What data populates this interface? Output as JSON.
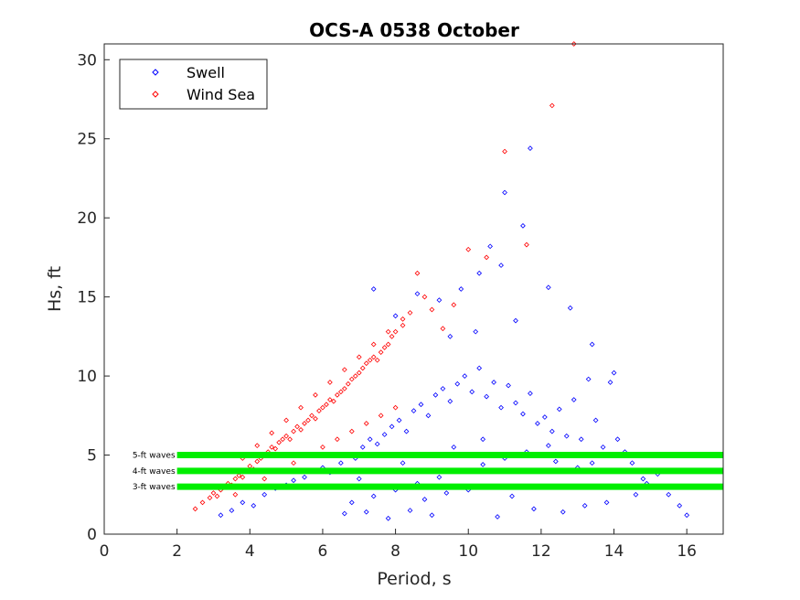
{
  "chart_data": {
    "type": "scatter",
    "title": "OCS-A 0538 October",
    "xlabel": "Period, s",
    "ylabel": "Hs, ft",
    "xlim": [
      0,
      17
    ],
    "ylim": [
      0,
      31
    ],
    "xticks": [
      "0",
      "2",
      "4",
      "6",
      "8",
      "10",
      "12",
      "14",
      "16"
    ],
    "yticks": [
      "0",
      "5",
      "10",
      "15",
      "20",
      "25",
      "30"
    ],
    "grid": false,
    "legend_position": "top-left",
    "marker": "diamond",
    "series": [
      {
        "name": "Swell",
        "color": "#0000ff",
        "x": [
          3.2,
          3.5,
          3.8,
          4.1,
          4.4,
          4.7,
          5.0,
          5.2,
          5.5,
          5.8,
          6.0,
          6.2,
          6.5,
          6.7,
          6.9,
          7.1,
          7.3,
          7.5,
          7.7,
          7.9,
          8.1,
          8.3,
          8.5,
          8.7,
          8.9,
          9.1,
          9.3,
          9.5,
          9.7,
          9.9,
          10.1,
          10.3,
          10.5,
          10.7,
          10.9,
          11.1,
          11.3,
          11.5,
          11.7,
          11.9,
          12.1,
          12.3,
          12.5,
          12.7,
          12.9,
          13.1,
          13.3,
          13.5,
          13.7,
          13.9,
          14.1,
          14.3,
          14.5,
          14.7,
          14.9,
          15.2,
          15.5,
          15.8,
          16.0,
          11.0,
          11.7,
          11.5,
          10.9,
          10.6,
          10.3,
          9.8,
          9.2,
          8.6,
          8.0,
          7.4,
          9.5,
          10.2,
          11.3,
          12.2,
          12.8,
          13.4,
          14.0,
          9.0,
          8.4,
          7.8,
          7.2,
          6.6,
          10.8,
          11.8,
          12.6,
          13.2,
          13.8,
          14.6,
          15.0,
          8.8,
          9.4,
          10.0,
          10.6,
          11.2,
          6.4,
          7.0,
          7.6,
          8.2,
          8.8,
          9.6,
          10.4,
          11.4,
          12.4,
          13.0,
          6.8,
          7.4,
          8.0,
          8.6,
          9.2,
          9.8,
          10.4,
          11.0,
          11.6,
          12.2,
          12.8,
          13.4,
          14.0,
          14.8
        ],
        "y": [
          1.2,
          1.5,
          2.0,
          1.8,
          2.5,
          2.9,
          3.1,
          3.4,
          3.6,
          4.0,
          4.2,
          3.9,
          4.5,
          5.0,
          4.8,
          5.5,
          6.0,
          5.7,
          6.3,
          6.8,
          7.2,
          6.5,
          7.8,
          8.2,
          7.5,
          8.8,
          9.2,
          8.4,
          9.5,
          10.0,
          9.0,
          10.5,
          8.7,
          9.6,
          8.0,
          9.4,
          8.3,
          7.6,
          8.9,
          7.0,
          7.4,
          6.5,
          7.9,
          6.2,
          8.5,
          6.0,
          9.8,
          7.2,
          5.5,
          9.6,
          6.0,
          5.2,
          4.5,
          4.0,
          3.2,
          3.8,
          2.5,
          1.8,
          1.2,
          21.6,
          24.4,
          19.5,
          17.0,
          18.2,
          16.5,
          15.5,
          14.8,
          15.2,
          13.8,
          15.5,
          12.5,
          12.8,
          13.5,
          15.6,
          14.3,
          12.0,
          10.2,
          1.2,
          1.5,
          1.0,
          1.4,
          1.3,
          1.1,
          1.6,
          1.4,
          1.8,
          2.0,
          2.5,
          3.0,
          2.2,
          2.6,
          2.8,
          3.0,
          2.4,
          3.0,
          3.5,
          4.0,
          4.5,
          5.0,
          5.5,
          6.0,
          5.0,
          4.6,
          4.2,
          2.0,
          2.4,
          2.8,
          3.2,
          3.6,
          4.0,
          4.4,
          4.8,
          5.2,
          5.6,
          5.0,
          4.5,
          4.0,
          3.5
        ]
      },
      {
        "name": "Wind Sea",
        "color": "#ff0000",
        "x": [
          2.5,
          2.7,
          2.9,
          3.0,
          3.1,
          3.2,
          3.3,
          3.4,
          3.5,
          3.6,
          3.7,
          3.8,
          3.9,
          4.0,
          4.1,
          4.2,
          4.3,
          4.4,
          4.5,
          4.6,
          4.7,
          4.8,
          4.9,
          5.0,
          5.1,
          5.2,
          5.3,
          5.4,
          5.5,
          5.6,
          5.7,
          5.8,
          5.9,
          6.0,
          6.1,
          6.2,
          6.3,
          6.4,
          6.5,
          6.6,
          6.7,
          6.8,
          6.9,
          7.0,
          7.1,
          7.2,
          7.3,
          7.4,
          7.5,
          7.6,
          7.7,
          7.8,
          7.9,
          8.0,
          8.2,
          8.4,
          8.6,
          8.8,
          9.0,
          9.3,
          9.6,
          10.0,
          10.5,
          11.0,
          11.6,
          12.3,
          12.9,
          3.6,
          4.0,
          4.4,
          4.8,
          5.2,
          5.6,
          6.0,
          6.4,
          6.8,
          7.2,
          7.6,
          8.0,
          3.8,
          4.2,
          4.6,
          5.0,
          5.4,
          5.8,
          6.2,
          6.6,
          7.0,
          7.4,
          7.8,
          8.2
        ],
        "y": [
          1.6,
          2.0,
          2.3,
          2.6,
          2.4,
          2.8,
          3.0,
          3.2,
          3.1,
          3.5,
          3.7,
          3.6,
          4.0,
          4.3,
          4.1,
          4.6,
          4.8,
          5.0,
          5.2,
          5.5,
          5.4,
          5.8,
          6.0,
          6.2,
          6.0,
          6.5,
          6.8,
          6.6,
          7.0,
          7.2,
          7.5,
          7.3,
          7.8,
          8.0,
          8.2,
          8.5,
          8.4,
          8.8,
          9.0,
          9.2,
          9.5,
          9.8,
          10.0,
          10.2,
          10.5,
          10.8,
          11.0,
          11.2,
          11.0,
          11.5,
          11.8,
          12.0,
          12.5,
          12.8,
          13.2,
          14.0,
          16.5,
          15.0,
          14.2,
          13.0,
          14.5,
          18.0,
          17.5,
          24.2,
          18.3,
          27.1,
          31.0,
          2.5,
          3.0,
          3.5,
          4.0,
          4.5,
          5.0,
          5.5,
          6.0,
          6.5,
          7.0,
          7.5,
          8.0,
          4.8,
          5.6,
          6.4,
          7.2,
          8.0,
          8.8,
          9.6,
          10.4,
          11.2,
          12.0,
          12.8,
          13.6
        ]
      }
    ],
    "reference_lines": [
      {
        "label": "5-ft waves",
        "y": 5,
        "x_start": 2,
        "x_end": 17,
        "color": "#00ee00"
      },
      {
        "label": "4-ft waves",
        "y": 4,
        "x_start": 2,
        "x_end": 17,
        "color": "#00ee00"
      },
      {
        "label": "3-ft waves",
        "y": 3,
        "x_start": 2,
        "x_end": 17,
        "color": "#00ee00"
      }
    ]
  }
}
